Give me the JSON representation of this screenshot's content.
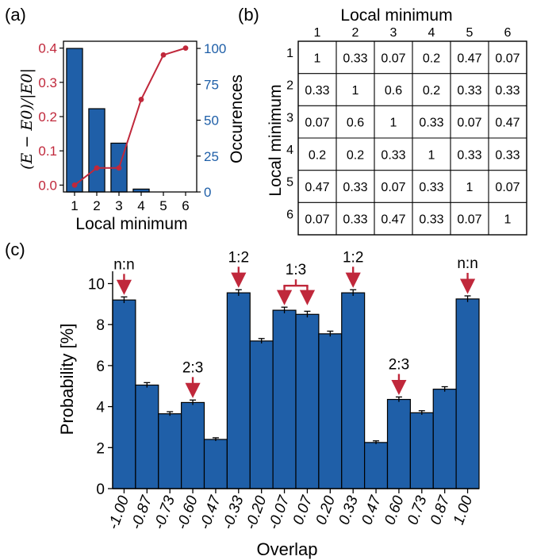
{
  "chart_data": [
    {
      "panel": "(a)",
      "type": "bar",
      "categories": [
        "1",
        "2",
        "3",
        "4",
        "5",
        "6"
      ],
      "series": [
        {
          "name": "Occurences",
          "type": "bar",
          "axis": "right",
          "values": [
            100,
            58,
            34,
            2,
            0,
            0
          ],
          "color": "#1f5fa8"
        },
        {
          "name": "(E - E0)/|E0|",
          "type": "line",
          "axis": "left",
          "values": [
            0.0,
            0.05,
            0.05,
            0.25,
            0.38,
            0.4
          ],
          "color": "#c0283b"
        }
      ],
      "xlabel": "Local minimum",
      "ylabel_left": "(E − E0)/|E0|",
      "ylabel_right": "Occurences",
      "ylim_left": [
        -0.02,
        0.42
      ],
      "ylim_right": [
        0,
        105
      ],
      "yticks_left": [
        "0.0",
        "0.1",
        "0.2",
        "0.3",
        "0.4"
      ],
      "yticks_right": [
        "0",
        "25",
        "50",
        "75",
        "100"
      ],
      "left_axis_color": "#c0283b",
      "right_axis_color": "#1f5fa8"
    },
    {
      "panel": "(b)",
      "type": "table",
      "title": "Local minimum",
      "ylabel": "Local minimum",
      "col_headers": [
        "1",
        "2",
        "3",
        "4",
        "5",
        "6"
      ],
      "row_headers": [
        "1",
        "2",
        "3",
        "4",
        "5",
        "6"
      ],
      "rows": [
        [
          "1",
          "0.33",
          "0.07",
          "0.2",
          "0.47",
          "0.07"
        ],
        [
          "0.33",
          "1",
          "0.6",
          "0.2",
          "0.33",
          "0.33"
        ],
        [
          "0.07",
          "0.6",
          "1",
          "0.33",
          "0.07",
          "0.47"
        ],
        [
          "0.2",
          "0.2",
          "0.33",
          "1",
          "0.33",
          "0.33"
        ],
        [
          "0.47",
          "0.33",
          "0.07",
          "0.33",
          "1",
          "0.07"
        ],
        [
          "0.07",
          "0.33",
          "0.47",
          "0.33",
          "0.07",
          "1"
        ]
      ]
    },
    {
      "panel": "(c)",
      "type": "bar",
      "categories": [
        "-1.00",
        "-0.87",
        "-0.73",
        "-0.60",
        "-0.47",
        "-0.33",
        "-0.20",
        "-0.07",
        "0.07",
        "0.20",
        "0.33",
        "0.47",
        "0.60",
        "0.73",
        "0.87",
        "1.00"
      ],
      "values": [
        9.2,
        5.05,
        3.65,
        4.2,
        2.4,
        9.55,
        7.2,
        8.7,
        8.5,
        7.55,
        9.55,
        2.25,
        4.35,
        3.7,
        4.85,
        9.25
      ],
      "errors": [
        0.15,
        0.12,
        0.1,
        0.12,
        0.08,
        0.15,
        0.12,
        0.15,
        0.15,
        0.13,
        0.15,
        0.08,
        0.12,
        0.1,
        0.12,
        0.15
      ],
      "xlabel": "Overlap",
      "ylabel": "Probability [%]",
      "ylim": [
        0,
        10.6
      ],
      "yticks": [
        "0",
        "2",
        "4",
        "6",
        "8",
        "10"
      ],
      "bar_color": "#1f5fa8",
      "annotation_color": "#c0283b",
      "annotations": [
        {
          "label": "n:n",
          "bars": [
            0
          ]
        },
        {
          "label": "2:3",
          "bars": [
            3
          ]
        },
        {
          "label": "1:2",
          "bars": [
            5
          ]
        },
        {
          "label": "1:3",
          "bars": [
            7,
            8
          ]
        },
        {
          "label": "1:2",
          "bars": [
            10
          ]
        },
        {
          "label": "2:3",
          "bars": [
            12
          ]
        },
        {
          "label": "n:n",
          "bars": [
            15
          ]
        }
      ]
    }
  ]
}
